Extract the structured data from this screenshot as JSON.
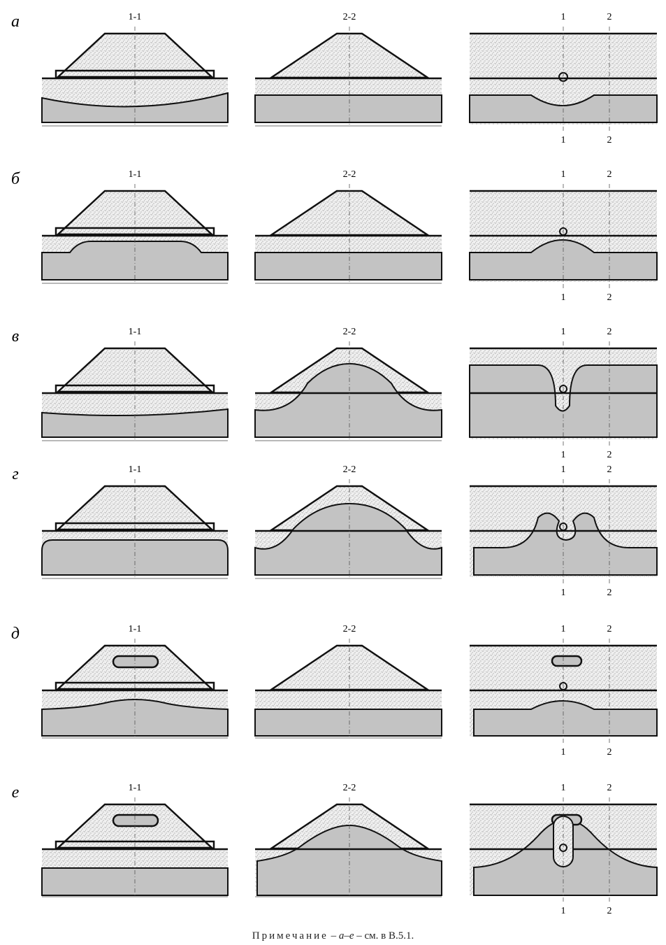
{
  "rows": [
    {
      "label": "а",
      "sections": [
        {
          "title": "1-1"
        },
        {
          "title": "2-2"
        },
        {
          "title_left": "1",
          "title_right": "2",
          "bottom_left": "1",
          "bottom_right": "2"
        }
      ]
    },
    {
      "label": "б",
      "sections": [
        {
          "title": "1-1"
        },
        {
          "title": "2-2"
        },
        {
          "title_left": "1",
          "title_right": "2",
          "bottom_left": "1",
          "bottom_right": "2"
        }
      ]
    },
    {
      "label": "в",
      "sections": [
        {
          "title": "1-1"
        },
        {
          "title": "2-2"
        },
        {
          "title_left": "1",
          "title_right": "2",
          "bottom_left": "1",
          "bottom_right": "2"
        }
      ]
    },
    {
      "label": "г",
      "sections": [
        {
          "title": "1-1"
        },
        {
          "title": "2-2"
        },
        {
          "title_left": "1",
          "title_right": "2",
          "bottom_left": "1",
          "bottom_right": "2"
        }
      ]
    },
    {
      "label": "д",
      "sections": [
        {
          "title": "1-1"
        },
        {
          "title": "2-2"
        },
        {
          "title_left": "1",
          "title_right": "2",
          "bottom_left": "1",
          "bottom_right": "2"
        }
      ]
    },
    {
      "label": "е",
      "sections": [
        {
          "title": "1-1"
        },
        {
          "title": "2-2"
        },
        {
          "title_left": "1",
          "title_right": "2",
          "bottom_left": "1",
          "bottom_right": "2"
        }
      ]
    }
  ],
  "note": {
    "prefix": "Примечание",
    "dash1": " – ",
    "range": "а–е",
    "rest": " – см. в В.5.1."
  },
  "colors": {
    "soil": "#c3c3c3",
    "fill_material": "#efefef",
    "stroke": "#111111"
  }
}
